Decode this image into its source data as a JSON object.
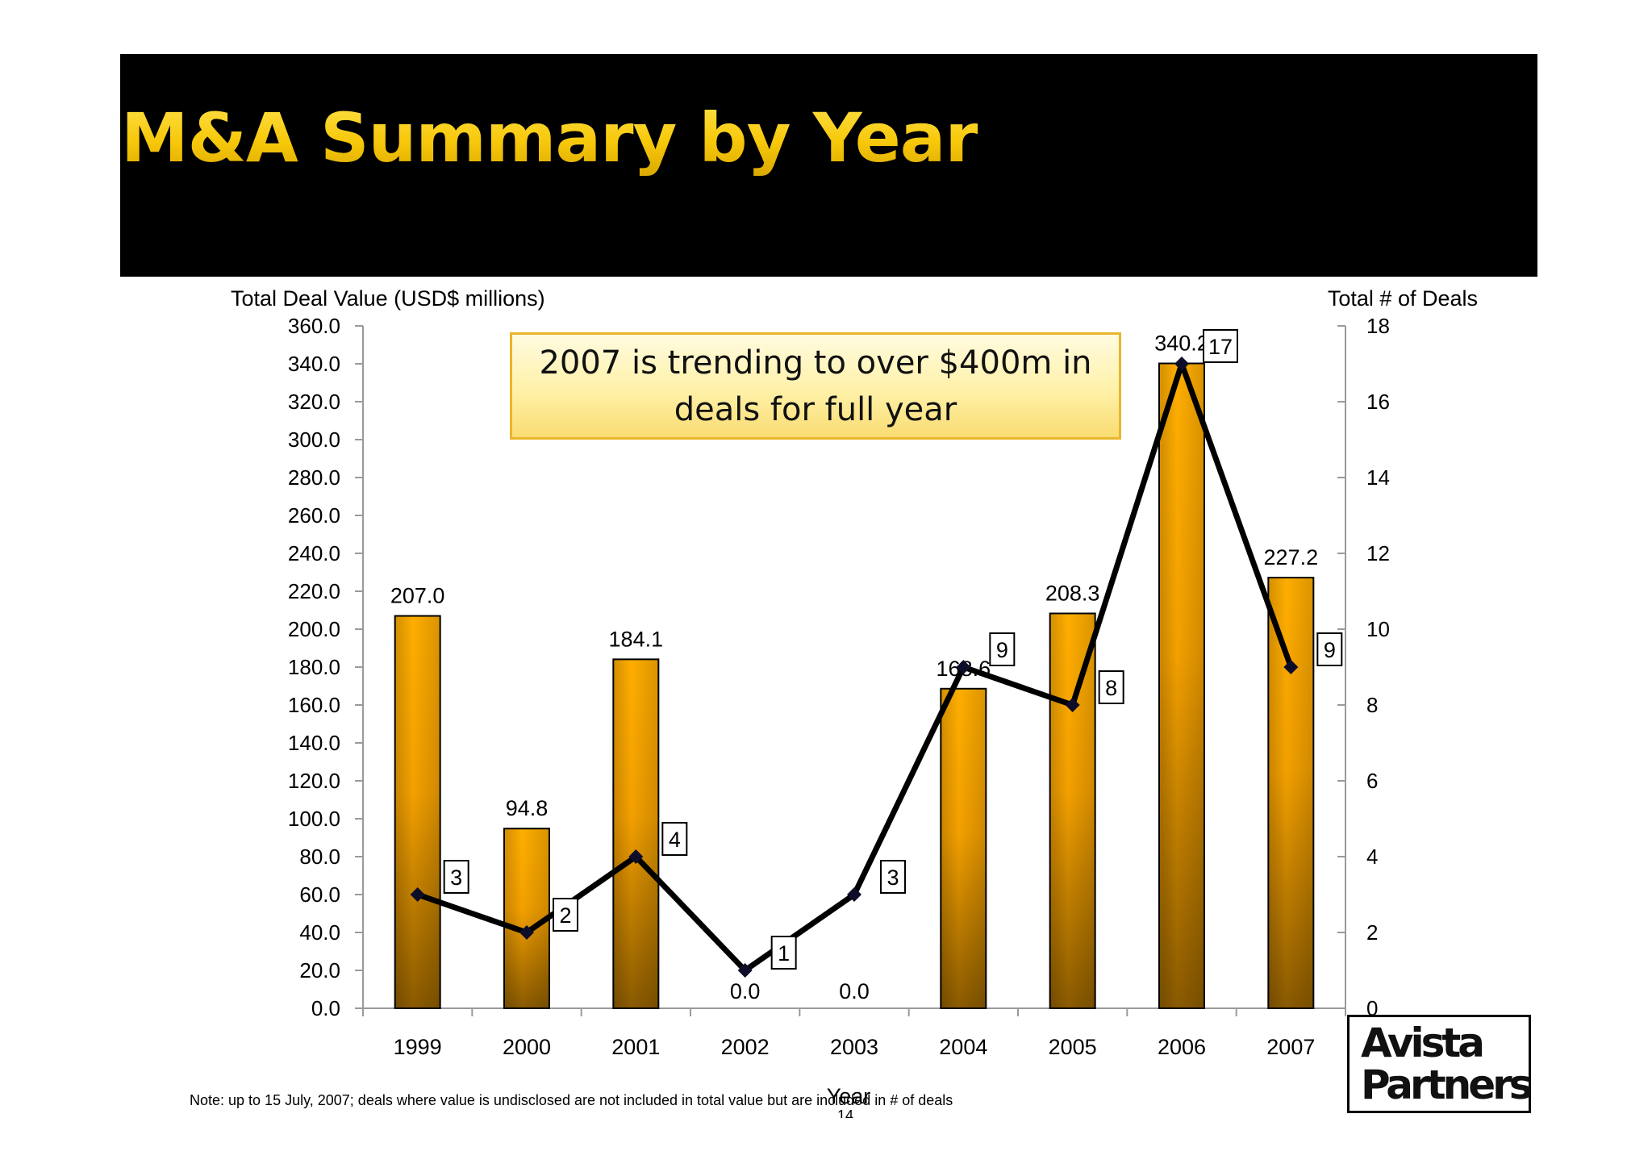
{
  "title": "M&A Summary by Year",
  "callout": "2007 is trending to over $400m in deals for full year",
  "note": "Note: up to 15 July, 2007; deals where value is undisclosed are not included in total value but are included in # of deals",
  "page_number": "14",
  "logo": {
    "line1": "Avista",
    "line2": "Partners"
  },
  "colors": {
    "bar_light": "#ffae00",
    "bar_dark": "#8a5a00",
    "line": "#000000",
    "marker": "#0d0d2a",
    "title": "#f7c80a"
  },
  "chart_data": {
    "type": "bar+line",
    "xlabel": "Year",
    "categories": [
      "1999",
      "2000",
      "2001",
      "2002",
      "2003",
      "2004",
      "2005",
      "2006",
      "2007"
    ],
    "series": [
      {
        "type": "bar",
        "axis": "left",
        "values": [
          207.0,
          94.8,
          184.1,
          0.0,
          0.0,
          168.6,
          208.3,
          340.2,
          227.2
        ],
        "labels": [
          "207.0",
          "94.8",
          "184.1",
          "0.0",
          "0.0",
          "168.6",
          "208.3",
          "340.2",
          "227.2"
        ]
      },
      {
        "type": "line",
        "axis": "right",
        "values": [
          3,
          2,
          4,
          1,
          3,
          9,
          8,
          17,
          9
        ],
        "labels": [
          "3",
          "2",
          "4",
          "1",
          "3",
          "9",
          "8",
          "17",
          "9"
        ]
      }
    ],
    "y_left": {
      "label": "Total Deal Value (USD$ millions)",
      "min": 0,
      "max": 360,
      "step": 20,
      "ticks": [
        "0.0",
        "20.0",
        "40.0",
        "60.0",
        "80.0",
        "100.0",
        "120.0",
        "140.0",
        "160.0",
        "180.0",
        "200.0",
        "220.0",
        "240.0",
        "260.0",
        "280.0",
        "300.0",
        "320.0",
        "340.0",
        "360.0"
      ]
    },
    "y_right": {
      "label": "Total # of Deals",
      "min": 0,
      "max": 18,
      "step": 2,
      "ticks": [
        "0",
        "2",
        "4",
        "6",
        "8",
        "10",
        "12",
        "14",
        "16",
        "18"
      ]
    },
    "grid": false,
    "legend": "none"
  }
}
